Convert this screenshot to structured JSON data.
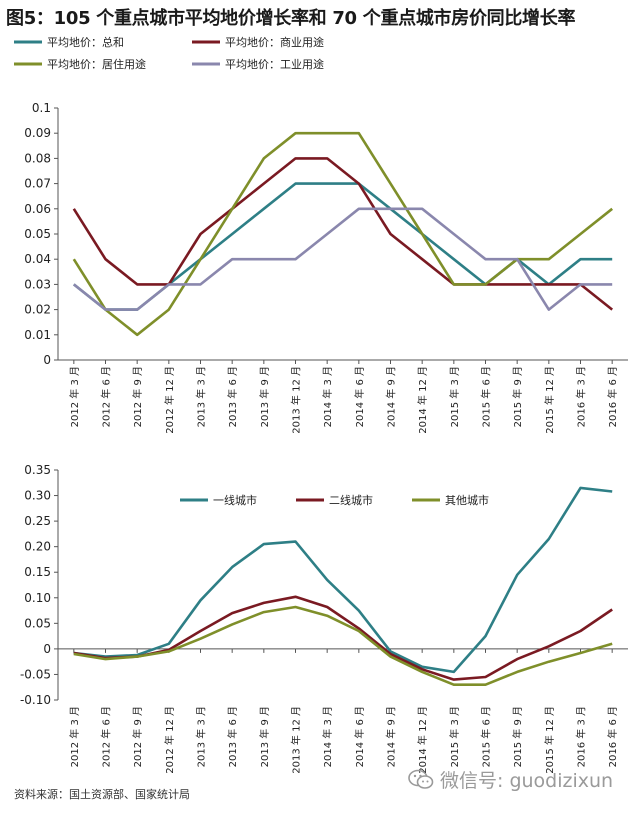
{
  "figure": {
    "title": "图5：105 个重点城市平均地价增长率和 70 个重点城市房价同比增长率",
    "source": "资料来源：国土资源部、国家统计局",
    "watermark": "微信号: guodizixun"
  },
  "chart_data": [
    {
      "type": "line",
      "categories": [
        "2012 年 3 月",
        "2012 年 6 月",
        "2012 年 9 月",
        "2012 年 12 月",
        "2013 年 3 月",
        "2013 年 6 月",
        "2013 年 9 月",
        "2013 年 12 月",
        "2014 年 3 月",
        "2014 年 6 月",
        "2014 年 9 月",
        "2014 年 12 月",
        "2015 年 3 月",
        "2015 年 6 月",
        "2015 年 9 月",
        "2015 年 12 月",
        "2016 年 3 月",
        "2016 年 6 月"
      ],
      "ylim": [
        0,
        0.1
      ],
      "yticks": [
        "0",
        "0.01",
        "0.02",
        "0.03",
        "0.04",
        "0.05",
        "0.06",
        "0.07",
        "0.08",
        "0.09",
        "0.1"
      ],
      "grid": false,
      "legend_position": "top",
      "series": [
        {
          "name": "平均地价：总和",
          "color": "#2e7f86",
          "values": [
            0.03,
            0.02,
            0.02,
            0.03,
            0.04,
            0.05,
            0.06,
            0.07,
            0.07,
            0.07,
            0.06,
            0.05,
            0.04,
            0.03,
            0.04,
            0.03,
            0.04,
            0.04
          ]
        },
        {
          "name": "平均地价：商业用途",
          "color": "#7a1a22",
          "values": [
            0.06,
            0.04,
            0.03,
            0.03,
            0.05,
            0.06,
            0.07,
            0.08,
            0.08,
            0.07,
            0.05,
            0.04,
            0.03,
            0.03,
            0.03,
            0.03,
            0.03,
            0.02
          ]
        },
        {
          "name": "平均地价：居住用途",
          "color": "#7f8f2a",
          "values": [
            0.04,
            0.02,
            0.01,
            0.02,
            0.04,
            0.06,
            0.08,
            0.09,
            0.09,
            0.09,
            0.07,
            0.05,
            0.03,
            0.03,
            0.04,
            0.04,
            0.05,
            0.06
          ]
        },
        {
          "name": "平均地价：工业用途",
          "color": "#8a87ad",
          "values": [
            0.03,
            0.02,
            0.02,
            0.03,
            0.03,
            0.04,
            0.04,
            0.04,
            0.05,
            0.06,
            0.06,
            0.06,
            0.05,
            0.04,
            0.04,
            0.02,
            0.03,
            0.03
          ]
        }
      ]
    },
    {
      "type": "line",
      "categories": [
        "2012 年 3 月",
        "2012 年 6 月",
        "2012 年 9 月",
        "2012 年 12 月",
        "2013 年 3 月",
        "2013 年 6 月",
        "2013 年 9 月",
        "2013 年 12 月",
        "2014 年 3 月",
        "2014 年 6 月",
        "2014 年 9 月",
        "2014 年 12 月",
        "2015 年 3 月",
        "2015 年 6 月",
        "2015 年 9 月",
        "2015 年 12 月",
        "2016 年 3 月",
        "2016 年 6 月"
      ],
      "ylim": [
        -0.1,
        0.35
      ],
      "yticks": [
        "-0.10",
        "-0.05",
        "0",
        "0.05",
        "0.10",
        "0.15",
        "0.20",
        "0.25",
        "0.30",
        "0.35"
      ],
      "grid": false,
      "legend_position": "top",
      "series": [
        {
          "name": "一线城市",
          "color": "#2e7f86",
          "values": [
            -0.008,
            -0.015,
            -0.012,
            0.01,
            0.095,
            0.16,
            0.205,
            0.21,
            0.135,
            0.075,
            -0.005,
            -0.035,
            -0.045,
            0.025,
            0.145,
            0.215,
            0.315,
            0.308
          ]
        },
        {
          "name": "二线城市",
          "color": "#7a1a22",
          "values": [
            -0.008,
            -0.018,
            -0.015,
            -0.002,
            0.035,
            0.07,
            0.09,
            0.102,
            0.082,
            0.04,
            -0.01,
            -0.04,
            -0.06,
            -0.055,
            -0.02,
            0.005,
            0.035,
            0.077
          ]
        },
        {
          "name": "其他城市",
          "color": "#7f8f2a",
          "values": [
            -0.01,
            -0.02,
            -0.015,
            -0.005,
            0.02,
            0.048,
            0.072,
            0.082,
            0.065,
            0.035,
            -0.015,
            -0.045,
            -0.07,
            -0.07,
            -0.045,
            -0.025,
            -0.008,
            0.01
          ]
        }
      ]
    }
  ]
}
